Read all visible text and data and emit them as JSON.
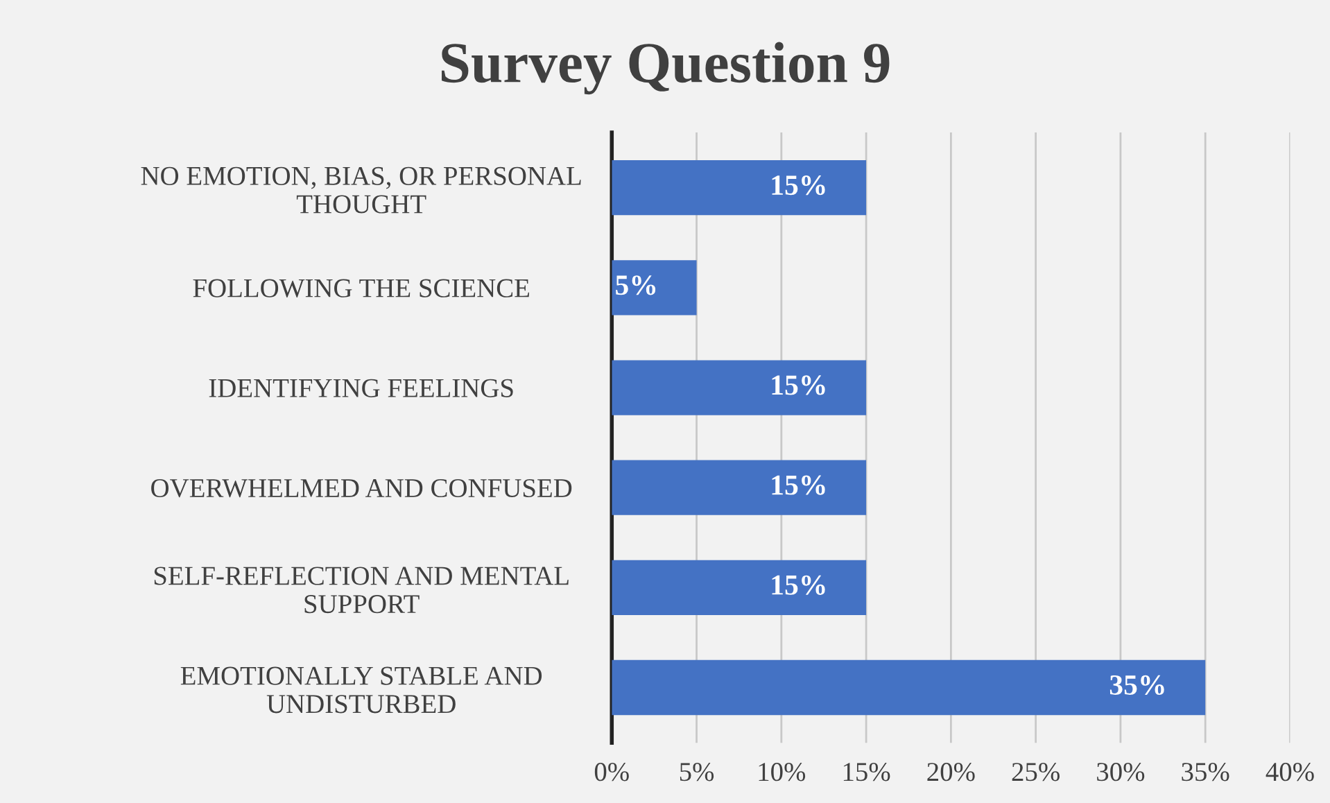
{
  "chart_data": {
    "type": "bar",
    "orientation": "horizontal",
    "title": "Survey Question 9",
    "categories": [
      "NO EMOTION, BIAS, OR PERSONAL\nTHOUGHT",
      "FOLLOWING THE SCIENCE",
      "IDENTIFYING FEELINGS",
      "OVERWHELMED AND CONFUSED",
      "SELF-REFLECTION AND MENTAL\nSUPPORT",
      "EMOTIONALLY STABLE AND\nUNDISTURBED"
    ],
    "values": [
      15,
      5,
      15,
      15,
      15,
      35
    ],
    "value_labels": [
      "15%",
      "5%",
      "15%",
      "15%",
      "15%",
      "35%"
    ],
    "color": "#4472c4",
    "xlim": [
      0,
      40
    ],
    "xticks": [
      {
        "value": 0,
        "label": "0%"
      },
      {
        "value": 5,
        "label": "5%"
      },
      {
        "value": 10,
        "label": "10%"
      },
      {
        "value": 15,
        "label": "15%"
      },
      {
        "value": 20,
        "label": "20%"
      },
      {
        "value": 25,
        "label": "25%"
      },
      {
        "value": 30,
        "label": "30%"
      },
      {
        "value": 35,
        "label": "35%"
      },
      {
        "value": 40,
        "label": "40%"
      }
    ],
    "grid": "x",
    "legend": false
  }
}
